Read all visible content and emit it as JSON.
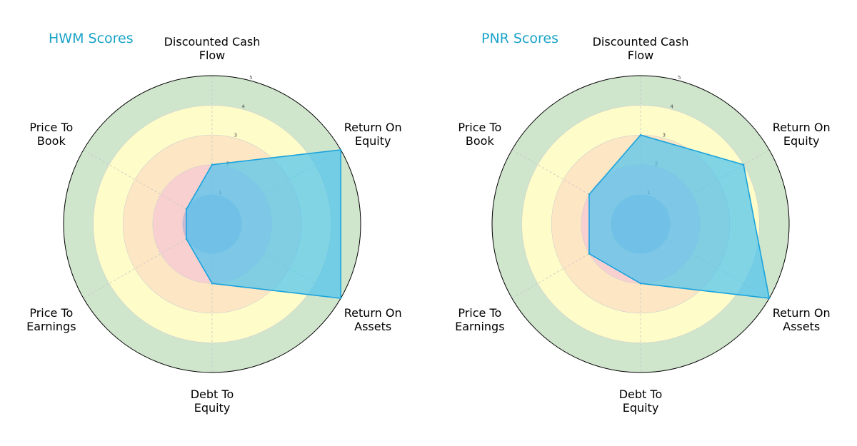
{
  "chart_data": [
    {
      "type": "radar",
      "title": "HWM Scores",
      "categories": [
        [
          "Discounted Cash",
          "Flow"
        ],
        [
          "Return On",
          "Equity"
        ],
        [
          "Return On",
          "Assets"
        ],
        [
          "Debt To",
          "Equity"
        ],
        [
          "Price To",
          "Earnings"
        ],
        [
          "Price To",
          "Book"
        ]
      ],
      "values": [
        2,
        5,
        5,
        2,
        1,
        1
      ],
      "rlim": [
        0,
        5
      ],
      "rticks": [
        "1",
        "2",
        "3",
        "4",
        "5"
      ],
      "title_color": "#1aa3c8",
      "fill_color": "#4cc3ef",
      "line_color": "#1aa3dd"
    },
    {
      "type": "radar",
      "title": "PNR Scores",
      "categories": [
        [
          "Discounted Cash",
          "Flow"
        ],
        [
          "Return On",
          "Equity"
        ],
        [
          "Return On",
          "Assets"
        ],
        [
          "Debt To",
          "Equity"
        ],
        [
          "Price To",
          "Earnings"
        ],
        [
          "Price To",
          "Book"
        ]
      ],
      "values": [
        3,
        4,
        5,
        2,
        2,
        2
      ],
      "rlim": [
        0,
        5
      ],
      "rticks": [
        "1",
        "2",
        "3",
        "4",
        "5"
      ],
      "title_color": "#1aa3c8",
      "fill_color": "#4cc3ef",
      "line_color": "#1aa3dd"
    }
  ],
  "band_colors": [
    "#a9a9d3",
    "#f8d0d0",
    "#fde6c4",
    "#fefcc8",
    "#cfe5cc"
  ]
}
